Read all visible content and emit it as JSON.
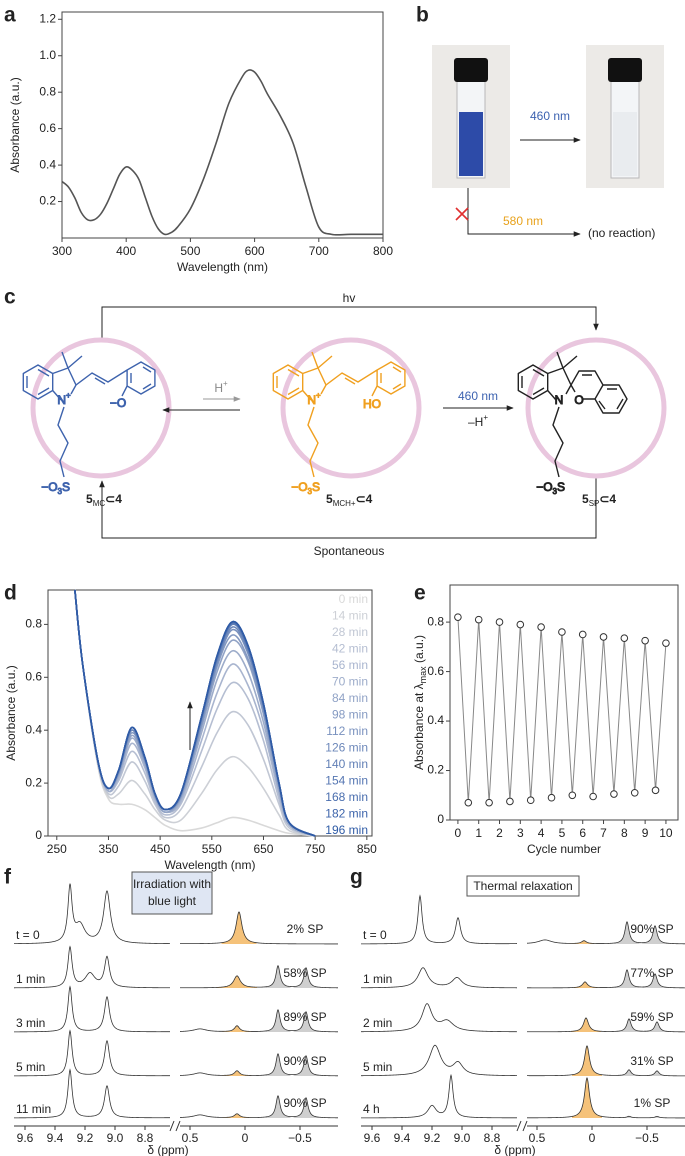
{
  "panel_labels": [
    "a",
    "b",
    "c",
    "d",
    "e",
    "f",
    "g"
  ],
  "chart_data": [
    {
      "type": "line",
      "x_label": "Wavelength (nm)",
      "y_label": "Absorbance (a.u.)",
      "x": [
        300,
        310,
        320,
        330,
        340,
        350,
        360,
        370,
        380,
        390,
        400,
        410,
        420,
        430,
        440,
        450,
        460,
        470,
        480,
        500,
        520,
        540,
        560,
        580,
        590,
        600,
        610,
        620,
        640,
        660,
        680,
        700,
        720,
        750,
        800
      ],
      "series": [
        {
          "color": "#555555",
          "values": [
            0.31,
            0.28,
            0.22,
            0.14,
            0.1,
            0.1,
            0.13,
            0.19,
            0.27,
            0.35,
            0.39,
            0.37,
            0.32,
            0.22,
            0.12,
            0.05,
            0.02,
            0.03,
            0.06,
            0.16,
            0.32,
            0.52,
            0.74,
            0.88,
            0.92,
            0.91,
            0.86,
            0.79,
            0.67,
            0.52,
            0.28,
            0.06,
            0.02,
            0.02,
            0.02
          ]
        }
      ],
      "xlim": [
        300,
        800
      ],
      "xticks": [
        300,
        400,
        500,
        600,
        700,
        800
      ],
      "ylim": [
        0,
        1.24
      ],
      "yticks": [
        0.2,
        0.4,
        0.6,
        0.8,
        {
          "value": 1,
          "label": "1.0"
        },
        1.2
      ]
    },
    {
      "type": "line",
      "x_label": "Wavelength (nm)",
      "y_label": "Absorbance (a.u.)",
      "x": [
        285,
        300,
        330,
        350,
        370,
        395,
        420,
        440,
        460,
        490,
        530,
        560,
        590,
        620,
        650,
        680,
        700,
        750
      ],
      "series": [
        {
          "name": "0 min",
          "color": "#d9d9d9",
          "values": [
            0.93,
            0.65,
            0.26,
            0.14,
            0.12,
            0.12,
            0.1,
            0.07,
            0.04,
            0.02,
            0.03,
            0.05,
            0.07,
            0.06,
            0.04,
            0.02,
            0.01,
            0
          ]
        },
        {
          "name": "14 min",
          "color": "#cdd0d6",
          "values": [
            0.93,
            0.65,
            0.27,
            0.15,
            0.16,
            0.21,
            0.16,
            0.1,
            0.06,
            0.06,
            0.16,
            0.25,
            0.3,
            0.26,
            0.18,
            0.08,
            0.02,
            0
          ]
        },
        {
          "name": "28 min",
          "color": "#c1c7d4",
          "values": [
            0.93,
            0.65,
            0.27,
            0.16,
            0.19,
            0.28,
            0.21,
            0.12,
            0.07,
            0.1,
            0.26,
            0.39,
            0.47,
            0.42,
            0.29,
            0.12,
            0.03,
            0
          ]
        },
        {
          "name": "42 min",
          "color": "#b5bed2",
          "values": [
            0.93,
            0.65,
            0.27,
            0.17,
            0.21,
            0.32,
            0.24,
            0.13,
            0.08,
            0.12,
            0.32,
            0.48,
            0.58,
            0.52,
            0.36,
            0.14,
            0.04,
            0
          ]
        },
        {
          "name": "56 min",
          "color": "#a9b5cf",
          "values": [
            0.93,
            0.65,
            0.28,
            0.17,
            0.22,
            0.35,
            0.26,
            0.14,
            0.09,
            0.13,
            0.36,
            0.54,
            0.65,
            0.57,
            0.4,
            0.16,
            0.04,
            0
          ]
        },
        {
          "name": "70 min",
          "color": "#9dacca",
          "values": [
            0.93,
            0.65,
            0.28,
            0.17,
            0.23,
            0.37,
            0.27,
            0.15,
            0.09,
            0.14,
            0.39,
            0.59,
            0.7,
            0.62,
            0.43,
            0.17,
            0.04,
            0
          ]
        },
        {
          "name": "84 min",
          "color": "#91a3c6",
          "values": [
            0.93,
            0.65,
            0.28,
            0.18,
            0.24,
            0.38,
            0.28,
            0.15,
            0.09,
            0.15,
            0.41,
            0.62,
            0.74,
            0.66,
            0.46,
            0.18,
            0.05,
            0
          ]
        },
        {
          "name": "98 min",
          "color": "#859ac2",
          "values": [
            0.93,
            0.65,
            0.28,
            0.18,
            0.24,
            0.39,
            0.29,
            0.15,
            0.1,
            0.15,
            0.42,
            0.64,
            0.76,
            0.67,
            0.47,
            0.19,
            0.05,
            0
          ]
        },
        {
          "name": "112 min",
          "color": "#7991be",
          "values": [
            0.93,
            0.65,
            0.28,
            0.18,
            0.24,
            0.4,
            0.29,
            0.16,
            0.1,
            0.15,
            0.43,
            0.65,
            0.78,
            0.69,
            0.48,
            0.19,
            0.05,
            0
          ]
        },
        {
          "name": "126 min",
          "color": "#6d88ba",
          "values": [
            0.93,
            0.65,
            0.28,
            0.18,
            0.25,
            0.4,
            0.29,
            0.16,
            0.1,
            0.16,
            0.44,
            0.66,
            0.79,
            0.7,
            0.49,
            0.2,
            0.05,
            0
          ]
        },
        {
          "name": "140 min",
          "color": "#617fb6",
          "values": [
            0.93,
            0.65,
            0.28,
            0.18,
            0.25,
            0.41,
            0.3,
            0.16,
            0.1,
            0.16,
            0.44,
            0.67,
            0.8,
            0.71,
            0.49,
            0.2,
            0.05,
            0
          ]
        },
        {
          "name": "154 min",
          "color": "#5576b2",
          "values": [
            0.93,
            0.65,
            0.28,
            0.18,
            0.25,
            0.41,
            0.3,
            0.16,
            0.1,
            0.16,
            0.45,
            0.67,
            0.805,
            0.71,
            0.5,
            0.2,
            0.05,
            0
          ]
        },
        {
          "name": "168 min",
          "color": "#496dae",
          "values": [
            0.93,
            0.65,
            0.28,
            0.18,
            0.25,
            0.41,
            0.3,
            0.16,
            0.1,
            0.16,
            0.45,
            0.68,
            0.81,
            0.72,
            0.5,
            0.2,
            0.05,
            0
          ]
        },
        {
          "name": "182 min",
          "color": "#3d64ab",
          "values": [
            0.93,
            0.65,
            0.28,
            0.18,
            0.25,
            0.41,
            0.3,
            0.16,
            0.1,
            0.16,
            0.45,
            0.68,
            0.81,
            0.72,
            0.5,
            0.2,
            0.05,
            0
          ]
        },
        {
          "name": "196 min",
          "color": "#2f5ba6",
          "values": [
            0.93,
            0.65,
            0.28,
            0.18,
            0.25,
            0.41,
            0.3,
            0.16,
            0.1,
            0.16,
            0.45,
            0.68,
            0.81,
            0.72,
            0.5,
            0.2,
            0.05,
            0
          ]
        }
      ],
      "xlim": [
        233,
        860
      ],
      "xticks": [
        250,
        350,
        450,
        550,
        650,
        750,
        850
      ],
      "ylim": [
        0,
        0.93
      ],
      "yticks": [
        0,
        0.2,
        0.4,
        0.6,
        0.8
      ]
    },
    {
      "type": "scatter",
      "x_label": "Cycle number",
      "y_label": {
        "text": "Absorbance at λ",
        "sub": "max",
        "end": " (a.u.)"
      },
      "x": [
        0,
        0.5,
        1,
        1.5,
        2,
        2.5,
        3,
        3.5,
        4,
        4.5,
        5,
        5.5,
        6,
        6.5,
        7,
        7.5,
        8,
        8.5,
        9,
        9.5,
        10
      ],
      "values": [
        0.82,
        0.07,
        0.81,
        0.07,
        0.8,
        0.075,
        0.79,
        0.08,
        0.78,
        0.09,
        0.76,
        0.1,
        0.75,
        0.095,
        0.74,
        0.105,
        0.735,
        0.11,
        0.725,
        0.12,
        0.715
      ],
      "color": "#888888",
      "connect": true,
      "xlim": [
        -0.38,
        10.58
      ],
      "xticks": [
        0,
        1,
        2,
        3,
        4,
        5,
        6,
        7,
        8,
        9,
        10
      ],
      "ylim": [
        0,
        0.95
      ],
      "yticks": [
        0,
        0.2,
        0.4,
        0.6,
        0.8
      ]
    }
  ],
  "panel_b": {
    "arrow_label": "460 nm",
    "blocked_label": "580 nm",
    "result": "(no reaction)"
  },
  "panel_c": {
    "top_arrow": "hv",
    "bottom_arrow": "Spontaneous",
    "protonation": {
      "text": "H",
      "sup": "+"
    },
    "irradiation": "460 nm",
    "deprotonation": {
      "text": "–H",
      "sup": "+"
    },
    "molecules": [
      {
        "nitrogen": "N",
        "charge": "+",
        "oxygen": "−O",
        "sulfonate": {
          "pre": "−O",
          "sub": "3",
          "post": "S"
        },
        "label": {
          "num": "5",
          "sub": "MC",
          "end": "⊂4"
        }
      },
      {
        "nitrogen": "N",
        "charge": "+",
        "oxygen": "HO",
        "sulfonate": {
          "pre": "−O",
          "sub": "3",
          "post": "S"
        },
        "label": {
          "num": "5",
          "sub": "MCH+",
          "end": "⊂4"
        }
      },
      {
        "nitrogen": "N",
        "oxygen": "O",
        "sulfonate": {
          "pre": "−O",
          "sub": "3",
          "post": "S"
        },
        "label": {
          "num": "5",
          "sub": "SP",
          "end": "⊂4"
        }
      }
    ]
  },
  "panel_f": {
    "box": [
      "Irradiation with",
      "blue light"
    ],
    "rows": [
      {
        "label": "t = 0",
        "percent": "2% SP"
      },
      {
        "label": "1 min",
        "percent": "58% SP"
      },
      {
        "label": "3 min",
        "percent": "89% SP"
      },
      {
        "label": "5 min",
        "percent": "90% SP"
      },
      {
        "label": "11 min",
        "percent": "90% SP"
      }
    ],
    "xticks": [
      "9.6",
      "9.4",
      "9.2",
      "9.0",
      "8.8",
      "0.5",
      "0",
      "−0.5"
    ],
    "x_label": "δ (ppm)"
  },
  "panel_g": {
    "box": [
      "Thermal relaxation"
    ],
    "rows": [
      {
        "label": "t = 0",
        "percent": "90% SP"
      },
      {
        "label": "1 min",
        "percent": "77% SP"
      },
      {
        "label": "2 min",
        "percent": "59% SP"
      },
      {
        "label": "5 min",
        "percent": "31% SP"
      },
      {
        "label": "4 h",
        "percent": "1% SP"
      }
    ],
    "xticks": [
      "9.6",
      "9.4",
      "9.2",
      "9.0",
      "8.8",
      "0.5",
      "0",
      "−0.5"
    ],
    "x_label": "δ (ppm)"
  }
}
